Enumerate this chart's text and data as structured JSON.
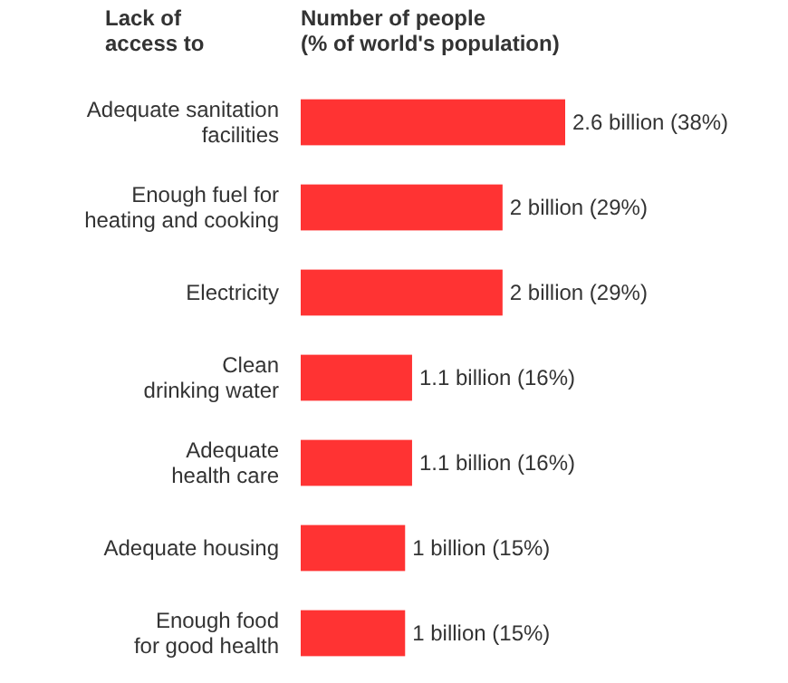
{
  "chart_data": {
    "type": "bar",
    "orientation": "horizontal",
    "ylabel": "Lack of access to",
    "xlabel": "Number of people (% of world's population)",
    "categories": [
      "Adequate sanitation facilities",
      "Enough fuel for heating and cooking",
      "Electricity",
      "Clean drinking water",
      "Adequate health care",
      "Adequate housing",
      "Enough food for good health"
    ],
    "values": [
      38,
      29,
      29,
      16,
      16,
      15,
      15
    ],
    "value_labels": [
      "2.6 billion (38%)",
      "2 billion (29%)",
      "2 billion (29%)",
      "1.1 billion (16%)",
      "1.1 billion (16%)",
      "1 billion (15%)",
      "1 billion (15%)"
    ],
    "color": "#ff3333"
  }
}
